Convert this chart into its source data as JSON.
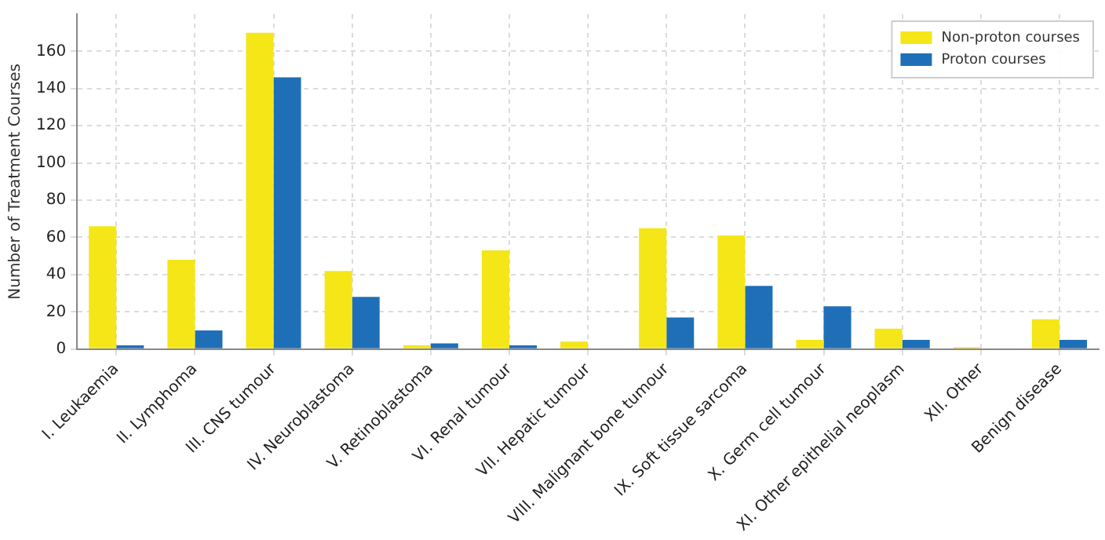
{
  "chart_data": {
    "type": "bar",
    "ylabel": "Number of Treatment Courses",
    "categories": [
      "I. Leukaemia",
      "II. Lymphoma",
      "III. CNS tumour",
      "IV. Neuroblastoma",
      "V. Retinoblastoma",
      "VI. Renal tumour",
      "VII. Hepatic tumour",
      "VIII. Malignant bone tumour",
      "IX. Soft tissue sarcoma",
      "X. Germ cell tumour",
      "XI. Other epithelial neoplasm",
      "XII. Other",
      "Benign disease"
    ],
    "series": [
      {
        "name": "Non-proton courses",
        "color": "#f5e617",
        "values": [
          66,
          48,
          170,
          42,
          2,
          53,
          4,
          65,
          61,
          5,
          11,
          1,
          16
        ]
      },
      {
        "name": "Proton courses",
        "color": "#1f6fb8",
        "values": [
          2,
          10,
          146,
          28,
          3,
          2,
          0,
          17,
          34,
          23,
          5,
          0,
          5
        ]
      }
    ],
    "ylim": [
      0,
      180
    ],
    "yticks": [
      0,
      20,
      40,
      60,
      80,
      100,
      120,
      140,
      160
    ],
    "grid": true,
    "legend": "top right"
  }
}
